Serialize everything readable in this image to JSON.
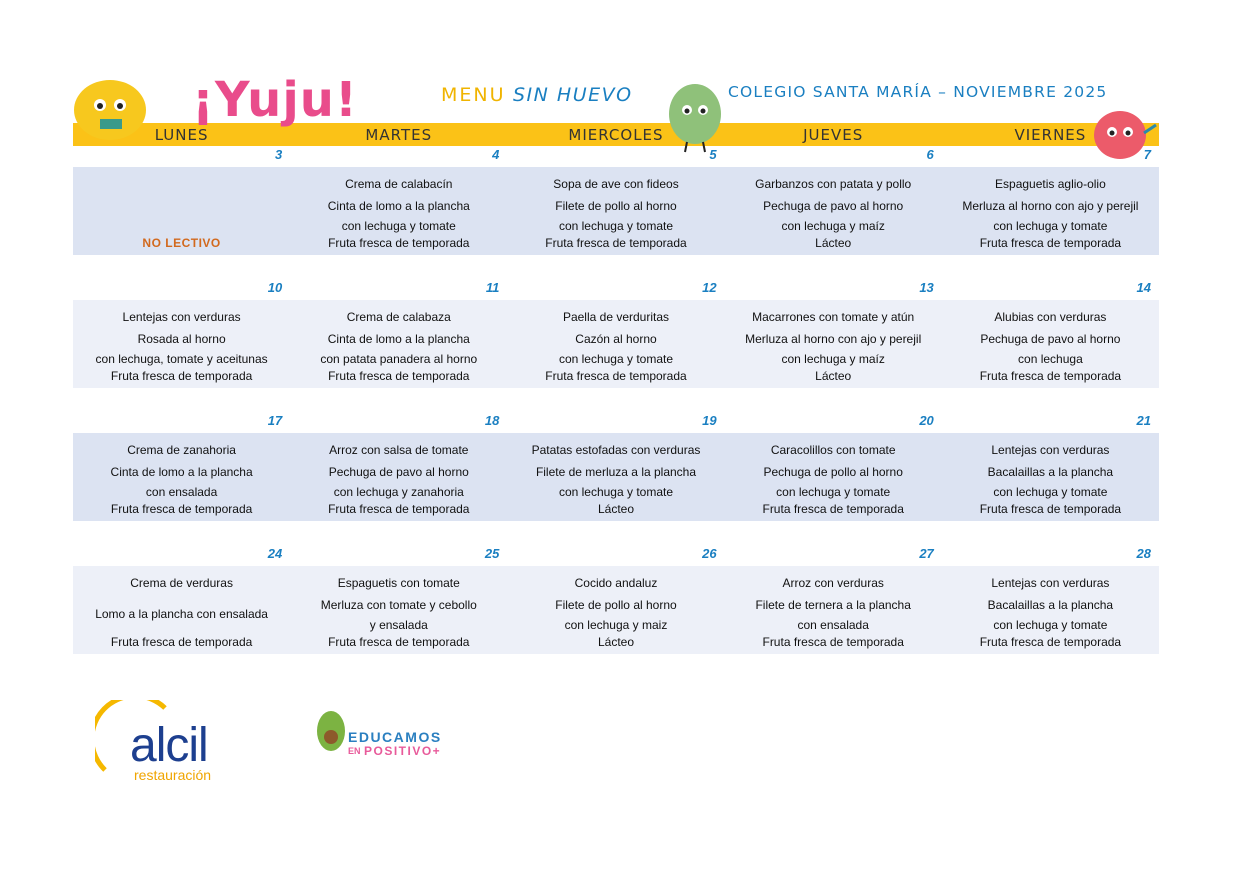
{
  "header": {
    "brand": "¡Yuju!",
    "menu": "MENU",
    "variant": "SIN HUEVO",
    "school": "COLEGIO SANTA MARÍA – NOVIEMBRE 2025"
  },
  "days": [
    "LUNES",
    "MARTES",
    "MIERCOLES",
    "JUEVES",
    "VIERNES"
  ],
  "weeks": [
    [
      {
        "date": 3,
        "note": "NO LECTIVO"
      },
      {
        "date": 4,
        "lines": [
          "Crema de calabacín",
          "Cinta de lomo a la plancha",
          "con lechuga y tomate",
          "Fruta fresca de temporada"
        ]
      },
      {
        "date": 5,
        "lines": [
          "Sopa de ave con fideos",
          "Filete de pollo al horno",
          "con lechuga y tomate",
          "Fruta fresca de temporada"
        ]
      },
      {
        "date": 6,
        "lines": [
          "Garbanzos con patata y pollo",
          "Pechuga de pavo al horno",
          "con lechuga y maíz",
          "Lácteo"
        ]
      },
      {
        "date": 7,
        "lines": [
          "Espaguetis aglio-olio",
          "Merluza al horno con ajo y perejil",
          "con lechuga y tomate",
          "Fruta fresca de temporada"
        ]
      }
    ],
    [
      {
        "date": 10,
        "lines": [
          "Lentejas con verduras",
          "Rosada al horno",
          "con lechuga, tomate y aceitunas",
          "Fruta fresca de temporada"
        ]
      },
      {
        "date": 11,
        "lines": [
          "Crema de calabaza",
          "Cinta de lomo a la plancha",
          "con patata panadera al horno",
          "Fruta fresca de temporada"
        ]
      },
      {
        "date": 12,
        "lines": [
          "Paella de verduritas",
          "Cazón al horno",
          "con lechuga y tomate",
          "Fruta fresca de temporada"
        ]
      },
      {
        "date": 13,
        "lines": [
          "Macarrones con tomate y atún",
          "Merluza al horno con ajo y perejil",
          "con lechuga y maíz",
          "Lácteo"
        ]
      },
      {
        "date": 14,
        "lines": [
          "Alubias con verduras",
          "Pechuga de pavo al horno",
          "con lechuga",
          "Fruta fresca de temporada"
        ]
      }
    ],
    [
      {
        "date": 17,
        "lines": [
          "Crema de zanahoria",
          "Cinta de lomo a la plancha",
          "con ensalada",
          "Fruta fresca de temporada"
        ]
      },
      {
        "date": 18,
        "lines": [
          "Arroz con salsa de tomate",
          "Pechuga de pavo al horno",
          "con lechuga y zanahoria",
          "Fruta fresca de temporada"
        ]
      },
      {
        "date": 19,
        "lines": [
          "Patatas estofadas con verduras",
          "Filete de merluza a la plancha",
          "con lechuga y tomate",
          "Lácteo"
        ]
      },
      {
        "date": 20,
        "lines": [
          "Caracolillos con tomate",
          "Pechuga de pollo al horno",
          "con lechuga y tomate",
          "Fruta fresca de temporada"
        ]
      },
      {
        "date": 21,
        "lines": [
          "Lentejas con verduras",
          "Bacalaillas a la plancha",
          "con lechuga y tomate",
          "Fruta fresca de temporada"
        ]
      }
    ],
    [
      {
        "date": 24,
        "lines": [
          "Crema de verduras",
          "Lomo a la plancha con ensalada",
          "Fruta fresca de temporada"
        ]
      },
      {
        "date": 25,
        "lines": [
          "Espaguetis con tomate",
          "Merluza con tomate y cebollo",
          "y ensalada",
          "Fruta fresca de temporada"
        ]
      },
      {
        "date": 26,
        "lines": [
          "Cocido andaluz",
          "Filete de pollo al horno",
          "con lechuga y maiz",
          "Lácteo"
        ]
      },
      {
        "date": 27,
        "lines": [
          "Arroz con verduras",
          "Filete de ternera a la plancha",
          "con ensalada",
          "Fruta fresca de temporada"
        ]
      },
      {
        "date": 28,
        "lines": [
          "Lentejas con verduras",
          "Bacalaillas a la plancha",
          "con lechuga y tomate",
          "Fruta fresca de temporada"
        ]
      }
    ]
  ],
  "footer": {
    "company": "alcil",
    "company_sub": "restauración",
    "program": "EDUCAMOS",
    "program_pre": "EN",
    "program_post": "POSITIVO+"
  }
}
